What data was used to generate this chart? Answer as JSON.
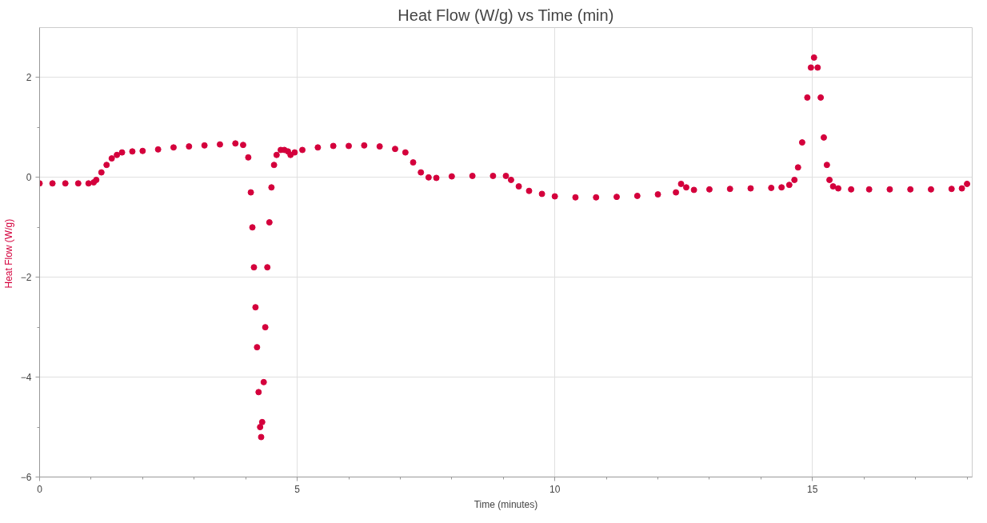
{
  "chart_data": {
    "type": "scatter",
    "title": "Heat Flow (W/g) vs Time (min)",
    "xlabel": "Time (minutes)",
    "ylabel": "Heat Flow  (W/g)",
    "xlim": [
      0,
      18.1
    ],
    "ylim": [
      -6,
      3
    ],
    "xticks": [
      0,
      {
        "value": 1,
        "label": null
      },
      {
        "value": 2,
        "label": null
      },
      {
        "value": 3,
        "label": null
      },
      {
        "value": 4,
        "label": null
      },
      5,
      {
        "value": 6,
        "label": null
      },
      {
        "value": 7,
        "label": null
      },
      {
        "value": 8,
        "label": null
      },
      {
        "value": 9,
        "label": null
      },
      10,
      {
        "value": 11,
        "label": null
      },
      {
        "value": 12,
        "label": null
      },
      {
        "value": 13,
        "label": null
      },
      {
        "value": 14,
        "label": null
      },
      15,
      {
        "value": 16,
        "label": null
      },
      {
        "value": 17,
        "label": null
      },
      {
        "value": 18,
        "label": null
      }
    ],
    "yticks": [
      -6,
      {
        "value": -5,
        "label": null
      },
      -4,
      {
        "value": -3,
        "label": null
      },
      -2,
      {
        "value": -1,
        "label": null
      },
      0,
      {
        "value": 1,
        "label": null
      },
      2
    ],
    "grid": true,
    "marker": "circle",
    "series": [
      {
        "color": "#d4003c",
        "x": [
          0,
          0.25,
          0.5,
          0.75,
          0.95,
          1.05,
          1.1,
          1.2,
          1.3,
          1.4,
          1.5,
          1.6,
          1.8,
          2.0,
          2.3,
          2.6,
          2.9,
          3.2,
          3.5,
          3.8,
          3.95,
          4.05,
          4.1,
          4.13,
          4.16,
          4.19,
          4.22,
          4.25,
          4.28,
          4.3,
          4.32,
          4.35,
          4.38,
          4.42,
          4.46,
          4.5,
          4.55,
          4.6,
          4.68,
          4.75,
          4.82,
          4.87,
          4.95,
          5.1,
          5.4,
          5.7,
          6.0,
          6.3,
          6.6,
          6.9,
          7.1,
          7.25,
          7.4,
          7.55,
          7.7,
          8.0,
          8.4,
          8.8,
          9.05,
          9.15,
          9.3,
          9.5,
          9.75,
          10.0,
          10.4,
          10.8,
          11.2,
          11.6,
          12.0,
          12.35,
          12.45,
          12.55,
          12.7,
          13.0,
          13.4,
          13.8,
          14.2,
          14.4,
          14.55,
          14.65,
          14.72,
          14.8,
          14.9,
          14.97,
          15.03,
          15.1,
          15.16,
          15.22,
          15.28,
          15.33,
          15.4,
          15.5,
          15.75,
          16.1,
          16.5,
          16.9,
          17.3,
          17.7,
          17.9,
          18.0
        ],
        "values": [
          -0.12,
          -0.12,
          -0.12,
          -0.12,
          -0.12,
          -0.1,
          -0.05,
          0.1,
          0.25,
          0.38,
          0.45,
          0.5,
          0.52,
          0.53,
          0.56,
          0.6,
          0.62,
          0.64,
          0.66,
          0.68,
          0.65,
          0.4,
          -0.3,
          -1.0,
          -1.8,
          -2.6,
          -3.4,
          -4.3,
          -5.0,
          -5.2,
          -4.9,
          -4.1,
          -3.0,
          -1.8,
          -0.9,
          -0.2,
          0.25,
          0.45,
          0.55,
          0.55,
          0.52,
          0.45,
          0.5,
          0.55,
          0.6,
          0.63,
          0.63,
          0.64,
          0.62,
          0.57,
          0.5,
          0.3,
          0.1,
          0.0,
          -0.01,
          0.02,
          0.03,
          0.03,
          0.03,
          -0.05,
          -0.18,
          -0.27,
          -0.33,
          -0.38,
          -0.4,
          -0.4,
          -0.39,
          -0.37,
          -0.34,
          -0.3,
          -0.13,
          -0.2,
          -0.25,
          -0.24,
          -0.23,
          -0.22,
          -0.21,
          -0.2,
          -0.15,
          -0.05,
          0.2,
          0.7,
          1.6,
          2.2,
          2.4,
          2.2,
          1.6,
          0.8,
          0.25,
          -0.05,
          -0.18,
          -0.22,
          -0.24,
          -0.24,
          -0.24,
          -0.24,
          -0.24,
          -0.23,
          -0.22,
          -0.13
        ]
      }
    ]
  }
}
